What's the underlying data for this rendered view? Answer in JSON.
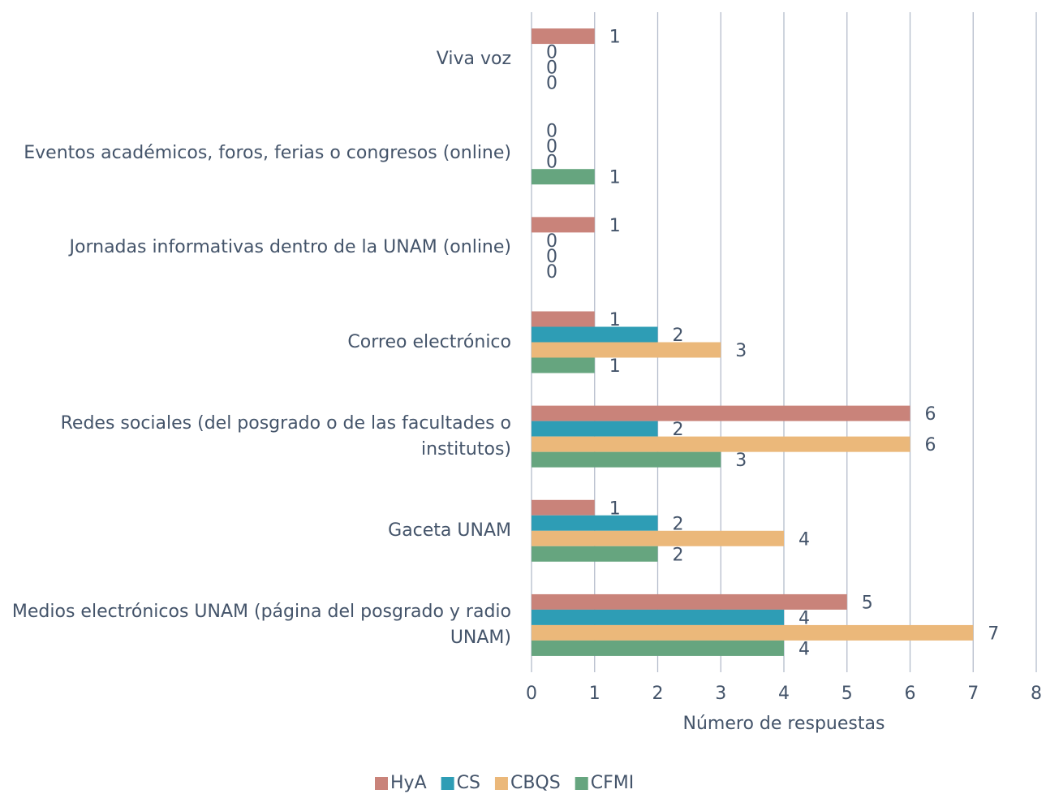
{
  "chart_data": {
    "type": "barh",
    "xlabel": "Número de respuestas",
    "categories": [
      "Viva voz",
      "Eventos académicos, foros, ferias o congresos (online)",
      "Jornadas informativas dentro de la UNAM (online)",
      "Correo electrónico",
      "Redes sociales (del posgrado o de las facultades o institutos)",
      "Gaceta UNAM",
      "Medios electrónicos UNAM (página del posgrado y radio UNAM)"
    ],
    "series": [
      {
        "name": "HyA",
        "color": "#c9837a",
        "values": [
          1,
          0,
          1,
          1,
          6,
          1,
          5
        ]
      },
      {
        "name": "CS",
        "color": "#2e9db5",
        "values": [
          0,
          0,
          0,
          2,
          2,
          2,
          4
        ]
      },
      {
        "name": "CBQS",
        "color": "#ebb87a",
        "values": [
          0,
          0,
          0,
          3,
          6,
          4,
          7
        ]
      },
      {
        "name": "CFMI",
        "color": "#66a57f",
        "values": [
          0,
          1,
          0,
          1,
          3,
          2,
          4
        ]
      }
    ],
    "xlim": [
      0,
      8
    ],
    "xticks": [
      0,
      1,
      2,
      3,
      4,
      5,
      6,
      7,
      8
    ],
    "grid": true,
    "legend": "bottom"
  }
}
